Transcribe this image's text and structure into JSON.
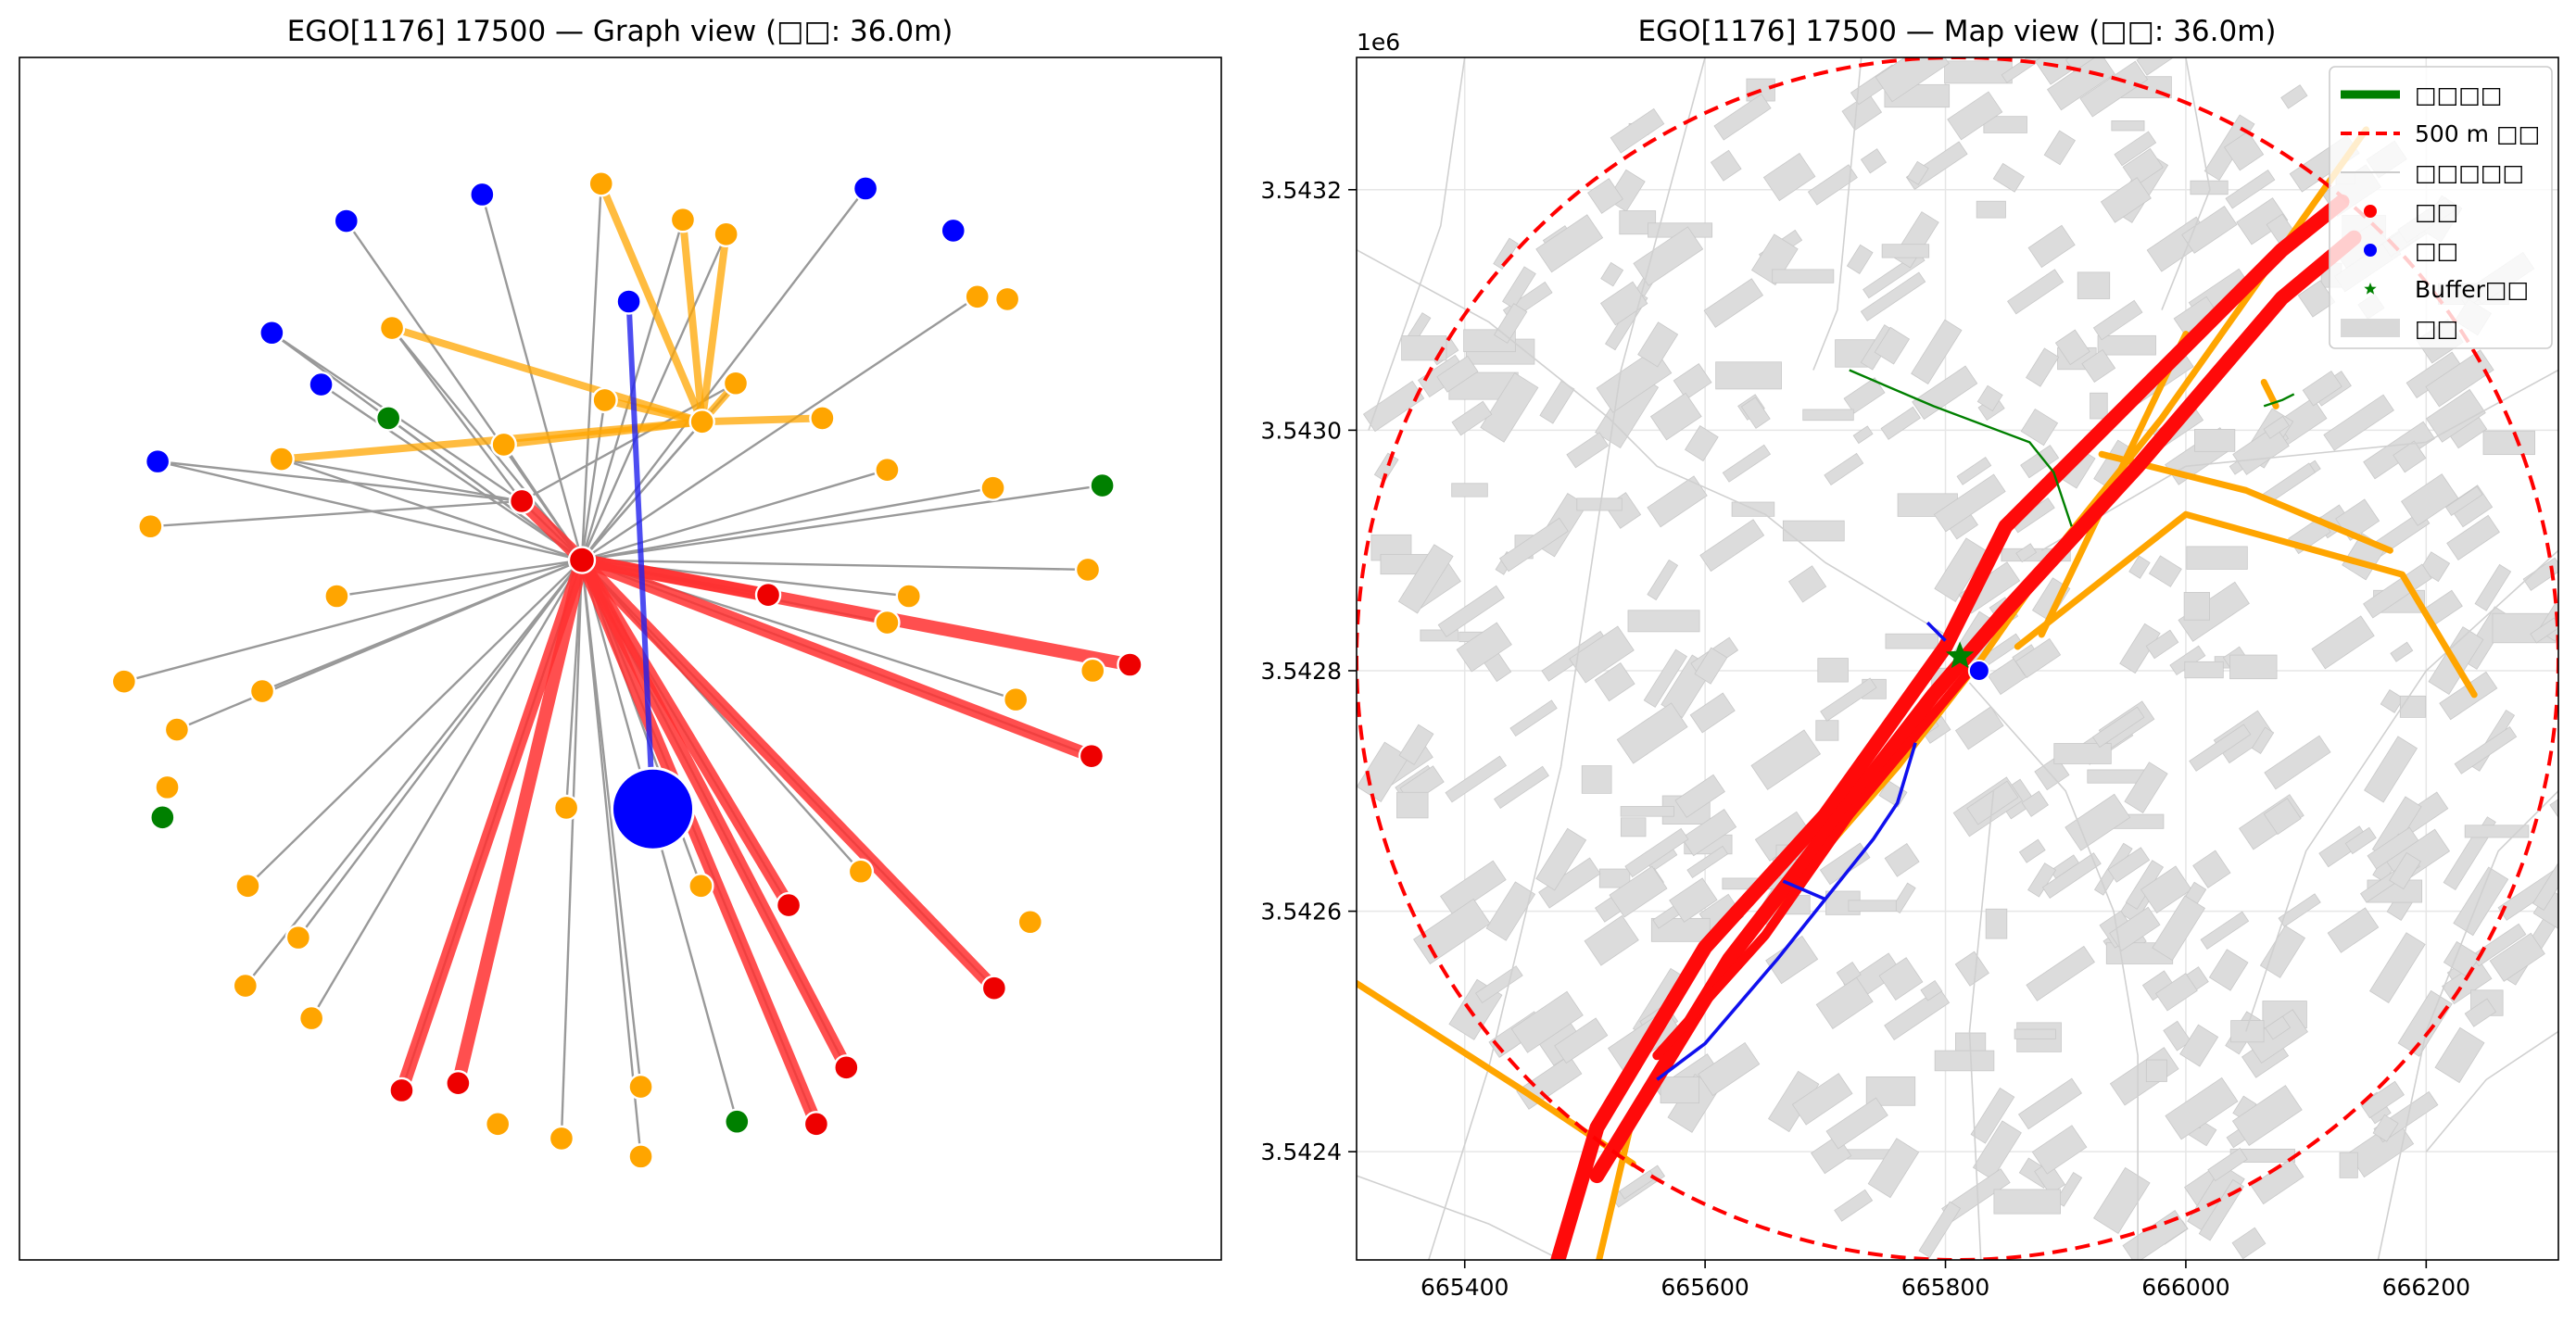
{
  "chart_data": [
    {
      "type": "scatter",
      "title": "EGO[1176] 17500 — Graph view (□□: 36.0m)",
      "colors": {
        "blue": "#0000ff",
        "orange": "#ffa500",
        "red": "#ee0000",
        "green": "#008000",
        "gray": "#999999"
      },
      "ego": {
        "x": 0.527,
        "y": 0.625,
        "color": "#0000ff"
      },
      "hub": {
        "x": 0.468,
        "y": 0.418,
        "color": "#ee0000"
      },
      "nodes": [
        {
          "x": 0.385,
          "y": 0.114,
          "c": "blue"
        },
        {
          "x": 0.704,
          "y": 0.109,
          "c": "blue"
        },
        {
          "x": 0.507,
          "y": 0.203,
          "c": "blue"
        },
        {
          "x": 0.21,
          "y": 0.229,
          "c": "blue"
        },
        {
          "x": 0.251,
          "y": 0.272,
          "c": "blue"
        },
        {
          "x": 0.115,
          "y": 0.336,
          "c": "blue"
        },
        {
          "x": 0.272,
          "y": 0.136,
          "c": "blue"
        },
        {
          "x": 0.777,
          "y": 0.144,
          "c": "blue"
        },
        {
          "x": 0.484,
          "y": 0.105,
          "c": "orange"
        },
        {
          "x": 0.552,
          "y": 0.135,
          "c": "orange"
        },
        {
          "x": 0.588,
          "y": 0.147,
          "c": "orange"
        },
        {
          "x": 0.797,
          "y": 0.199,
          "c": "orange"
        },
        {
          "x": 0.822,
          "y": 0.201,
          "c": "orange"
        },
        {
          "x": 0.31,
          "y": 0.225,
          "c": "orange"
        },
        {
          "x": 0.596,
          "y": 0.271,
          "c": "orange"
        },
        {
          "x": 0.487,
          "y": 0.285,
          "c": "orange"
        },
        {
          "x": 0.568,
          "y": 0.303,
          "c": "orange"
        },
        {
          "x": 0.668,
          "y": 0.3,
          "c": "orange"
        },
        {
          "x": 0.403,
          "y": 0.322,
          "c": "orange"
        },
        {
          "x": 0.218,
          "y": 0.334,
          "c": "orange"
        },
        {
          "x": 0.722,
          "y": 0.343,
          "c": "orange"
        },
        {
          "x": 0.81,
          "y": 0.358,
          "c": "orange"
        },
        {
          "x": 0.109,
          "y": 0.39,
          "c": "orange"
        },
        {
          "x": 0.889,
          "y": 0.426,
          "c": "orange"
        },
        {
          "x": 0.74,
          "y": 0.448,
          "c": "orange"
        },
        {
          "x": 0.264,
          "y": 0.448,
          "c": "orange"
        },
        {
          "x": 0.722,
          "y": 0.47,
          "c": "orange"
        },
        {
          "x": 0.893,
          "y": 0.51,
          "c": "orange"
        },
        {
          "x": 0.087,
          "y": 0.519,
          "c": "orange"
        },
        {
          "x": 0.202,
          "y": 0.527,
          "c": "orange"
        },
        {
          "x": 0.829,
          "y": 0.534,
          "c": "orange"
        },
        {
          "x": 0.131,
          "y": 0.559,
          "c": "orange"
        },
        {
          "x": 0.123,
          "y": 0.607,
          "c": "orange"
        },
        {
          "x": 0.455,
          "y": 0.624,
          "c": "orange"
        },
        {
          "x": 0.7,
          "y": 0.677,
          "c": "orange"
        },
        {
          "x": 0.567,
          "y": 0.689,
          "c": "orange"
        },
        {
          "x": 0.19,
          "y": 0.689,
          "c": "orange"
        },
        {
          "x": 0.841,
          "y": 0.719,
          "c": "orange"
        },
        {
          "x": 0.232,
          "y": 0.732,
          "c": "orange"
        },
        {
          "x": 0.188,
          "y": 0.772,
          "c": "orange"
        },
        {
          "x": 0.243,
          "y": 0.799,
          "c": "orange"
        },
        {
          "x": 0.517,
          "y": 0.856,
          "c": "orange"
        },
        {
          "x": 0.398,
          "y": 0.887,
          "c": "orange"
        },
        {
          "x": 0.451,
          "y": 0.899,
          "c": "orange"
        },
        {
          "x": 0.517,
          "y": 0.914,
          "c": "orange"
        },
        {
          "x": 0.418,
          "y": 0.369,
          "c": "red"
        },
        {
          "x": 0.623,
          "y": 0.447,
          "c": "red"
        },
        {
          "x": 0.924,
          "y": 0.505,
          "c": "red"
        },
        {
          "x": 0.892,
          "y": 0.581,
          "c": "red"
        },
        {
          "x": 0.64,
          "y": 0.705,
          "c": "red"
        },
        {
          "x": 0.811,
          "y": 0.774,
          "c": "red"
        },
        {
          "x": 0.688,
          "y": 0.84,
          "c": "red"
        },
        {
          "x": 0.365,
          "y": 0.853,
          "c": "red"
        },
        {
          "x": 0.318,
          "y": 0.859,
          "c": "red"
        },
        {
          "x": 0.663,
          "y": 0.887,
          "c": "red"
        },
        {
          "x": 0.307,
          "y": 0.3,
          "c": "green"
        },
        {
          "x": 0.901,
          "y": 0.356,
          "c": "green"
        },
        {
          "x": 0.119,
          "y": 0.632,
          "c": "green"
        },
        {
          "x": 0.597,
          "y": 0.885,
          "c": "green"
        }
      ]
    },
    {
      "type": "line",
      "title": "EGO[1176] 17500 — Map view (□□: 36.0m)",
      "offset_text": "1e6",
      "xlim": [
        665310,
        666310
      ],
      "ylim": [
        3542310,
        3543310
      ],
      "x_ticks": [
        665400,
        665600,
        665800,
        666000,
        666200
      ],
      "y_ticks": [
        3542400,
        3542600,
        3542800,
        3543000,
        3543200
      ],
      "y_tick_labels": [
        "3.5424",
        "3.5426",
        "3.5428",
        "3.5430",
        "3.5432"
      ],
      "grid": true,
      "legend_position": "upper-right",
      "legend": [
        {
          "label": "□□□□",
          "kind": "line",
          "color": "#008000"
        },
        {
          "label": "500 m □□",
          "kind": "dash",
          "color": "#ff0000"
        },
        {
          "label": "□□□□□",
          "kind": "thin",
          "color": "#cccccc"
        },
        {
          "label": "□□",
          "kind": "dot",
          "color": "#ff0000"
        },
        {
          "label": "□□",
          "kind": "dot",
          "color": "#0000ff"
        },
        {
          "label": "Buffer□□",
          "kind": "star",
          "color": "#008000"
        },
        {
          "label": "□□",
          "kind": "patch",
          "color": "#d9d9d9"
        }
      ],
      "ego_point": {
        "x": 665828,
        "y": 3542800,
        "color": "#0000ff"
      },
      "buffer_point": {
        "x": 665812,
        "y": 3542812,
        "color": "#008000"
      },
      "buffer_circle": {
        "cx": 665810,
        "cy": 3542810,
        "r": 500,
        "color": "#ff0000"
      },
      "red_roads": [
        [
          [
            665460,
            3542250
          ],
          [
            665510,
            3542420
          ],
          [
            665600,
            3542570
          ],
          [
            665700,
            3542680
          ],
          [
            665800,
            3542820
          ],
          [
            665850,
            3542920
          ],
          [
            665960,
            3543030
          ],
          [
            666080,
            3543150
          ],
          [
            666130,
            3543190
          ]
        ],
        [
          [
            665510,
            3542380
          ],
          [
            665620,
            3542560
          ],
          [
            665790,
            3542780
          ],
          [
            665850,
            3542850
          ],
          [
            665960,
            3542970
          ],
          [
            666080,
            3543110
          ],
          [
            666140,
            3543160
          ]
        ],
        [
          [
            665560,
            3542480
          ],
          [
            665650,
            3542580
          ],
          [
            665720,
            3542680
          ],
          [
            665820,
            3542800
          ]
        ]
      ],
      "orange_roads": [
        [
          [
            665500,
            3542260
          ],
          [
            665540,
            3542430
          ],
          [
            665620,
            3542560
          ],
          [
            665760,
            3542720
          ],
          [
            665830,
            3542810
          ],
          [
            665900,
            3542910
          ],
          [
            665980,
            3543010
          ],
          [
            666150,
            3543250
          ]
        ],
        [
          [
            665310,
            3542540
          ],
          [
            665450,
            3542450
          ],
          [
            665540,
            3542390
          ]
        ],
        [
          [
            665860,
            3542820
          ],
          [
            666000,
            3542930
          ],
          [
            666180,
            3542880
          ],
          [
            666240,
            3542780
          ]
        ],
        [
          [
            665930,
            3542980
          ],
          [
            666050,
            3542950
          ],
          [
            666170,
            3542900
          ]
        ],
        [
          [
            665880,
            3542830
          ],
          [
            666000,
            3543080
          ]
        ],
        [
          [
            666065,
            3543040
          ],
          [
            666075,
            3543020
          ]
        ]
      ],
      "blue_roads": [
        [
          [
            665560,
            3542460
          ],
          [
            665600,
            3542490
          ],
          [
            665660,
            3542560
          ],
          [
            665700,
            3542610
          ],
          [
            665740,
            3542660
          ],
          [
            665760,
            3542690
          ],
          [
            665775,
            3542740
          ]
        ],
        [
          [
            665665,
            3542625
          ],
          [
            665700,
            3542610
          ]
        ],
        [
          [
            665785,
            3542840
          ],
          [
            665800,
            3542825
          ]
        ]
      ],
      "green_roads": [
        [
          [
            665720,
            3543050
          ],
          [
            665790,
            3543020
          ],
          [
            665870,
            3542990
          ],
          [
            665890,
            3542965
          ],
          [
            665905,
            3542920
          ]
        ],
        [
          [
            666065,
            3543020
          ],
          [
            666080,
            3543025
          ],
          [
            666090,
            3543030
          ]
        ]
      ],
      "thin_roads": [
        [
          [
            665310,
            3543150
          ],
          [
            665420,
            3543090
          ],
          [
            665520,
            3543010
          ],
          [
            665560,
            3542970
          ],
          [
            665650,
            3542930
          ],
          [
            665700,
            3542890
          ],
          [
            665800,
            3542830
          ]
        ],
        [
          [
            665400,
            3543310
          ],
          [
            665380,
            3543170
          ],
          [
            665320,
            3543000
          ]
        ],
        [
          [
            665600,
            3543310
          ],
          [
            665530,
            3543050
          ],
          [
            665480,
            3542720
          ],
          [
            665420,
            3542470
          ],
          [
            665370,
            3542310
          ]
        ],
        [
          [
            665730,
            3543310
          ],
          [
            665710,
            3543100
          ],
          [
            665690,
            3543050
          ]
        ],
        [
          [
            665880,
            3542900
          ],
          [
            666000,
            3542970
          ],
          [
            666200,
            3542990
          ],
          [
            666310,
            3543050
          ]
        ],
        [
          [
            666310,
            3542900
          ],
          [
            666200,
            3542800
          ],
          [
            666100,
            3542650
          ],
          [
            666050,
            3542500
          ]
        ],
        [
          [
            665820,
            3542790
          ],
          [
            665900,
            3542700
          ],
          [
            665940,
            3542600
          ],
          [
            665960,
            3542480
          ],
          [
            665960,
            3542310
          ]
        ],
        [
          [
            665830,
            3542300
          ],
          [
            665820,
            3542500
          ],
          [
            665840,
            3542700
          ]
        ],
        [
          [
            666160,
            3542310
          ],
          [
            666200,
            3542500
          ],
          [
            666260,
            3542650
          ],
          [
            666310,
            3542700
          ]
        ],
        [
          [
            666000,
            3543310
          ],
          [
            666020,
            3543200
          ],
          [
            665980,
            3543100
          ]
        ],
        [
          [
            666310,
            3542500
          ],
          [
            666250,
            3542460
          ],
          [
            666200,
            3542400
          ]
        ],
        [
          [
            665310,
            3542380
          ],
          [
            665420,
            3542340
          ],
          [
            665480,
            3542310
          ]
        ]
      ]
    }
  ]
}
